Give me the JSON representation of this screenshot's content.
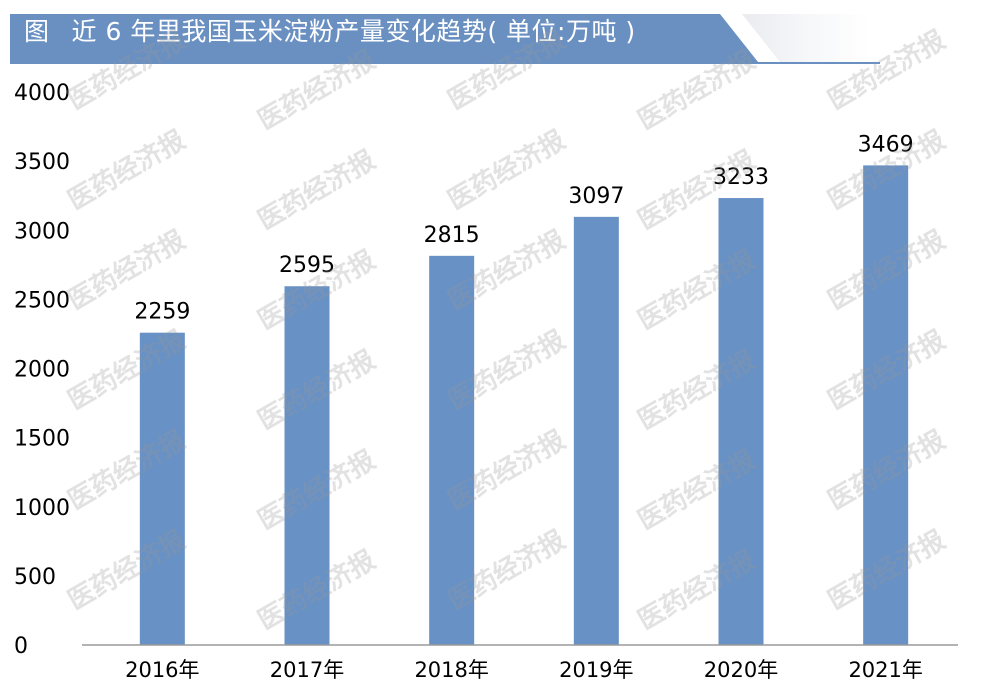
{
  "header": {
    "figure_label": "图",
    "title": "近 6 年里我国玉米淀粉产量变化趋势( 单位:万吨 )"
  },
  "watermark_text": "医药经济报",
  "colors": {
    "bar": "#6891c5",
    "banner": "#6a90c2",
    "axis": "#9a9a9a",
    "text": "#000000"
  },
  "chart_data": {
    "type": "bar",
    "categories": [
      "2016年",
      "2017年",
      "2018年",
      "2019年",
      "2020年",
      "2021年"
    ],
    "values": [
      2259,
      2595,
      2815,
      3097,
      3233,
      3469
    ],
    "data_labels": [
      "2259",
      "2595",
      "2815",
      "3097",
      "3233",
      "3469"
    ],
    "ylim": [
      0,
      4000
    ],
    "yticks": [
      "0",
      "500",
      "1000",
      "1500",
      "2000",
      "2500",
      "3000",
      "3500",
      "4000"
    ],
    "grid": false,
    "legend": "none"
  }
}
